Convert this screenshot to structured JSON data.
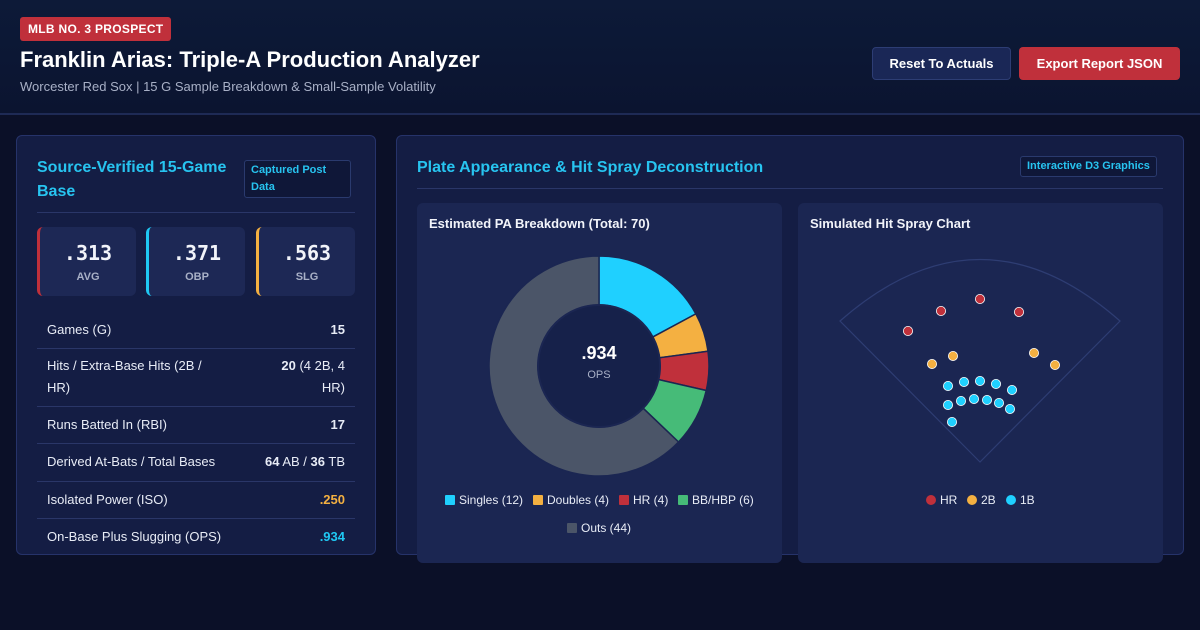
{
  "header": {
    "badge": "MLB NO. 3 PROSPECT",
    "title": "Franklin Arias: Triple-A Production Analyzer",
    "subtitle": "Worcester Red Sox | 15 G Sample Breakdown & Small-Sample Volatility",
    "reset_label": "Reset To Actuals",
    "export_label": "Export Report JSON"
  },
  "left_panel": {
    "title": "Source-Verified 15-Game Base",
    "tag": "Captured Post Data",
    "stats": [
      {
        "value": ".313",
        "label": "AVG",
        "color": "#c0303b"
      },
      {
        "value": ".371",
        "label": "OBP",
        "color": "#1fc8f3"
      },
      {
        "value": ".563",
        "label": "SLG",
        "color": "#f4b041"
      }
    ],
    "rows": [
      {
        "label": "Games (G)",
        "value": "15"
      },
      {
        "label": "Hits / Extra-Base Hits (2B / HR)",
        "value_main": "20",
        "value_rest": " (4 2B, 4 HR)"
      },
      {
        "label": "Runs Batted In (RBI)",
        "value": "17"
      },
      {
        "label": "Derived At-Bats / Total Bases",
        "v1": "64",
        "v1_unit": " AB / ",
        "v2": "36",
        "v2_unit": " TB"
      },
      {
        "label": "Isolated Power (ISO)",
        "value": ".250",
        "color": "#f4b041"
      },
      {
        "label": "On-Base Plus Slugging (OPS)",
        "value": ".934",
        "color": "#1fc8f3"
      }
    ]
  },
  "right_panel": {
    "title": "Plate Appearance & Hit Spray Deconstruction",
    "tag": "Interactive D3 Graphics",
    "donut_title": "Estimated PA Breakdown (Total: 70)",
    "spray_title": "Simulated Hit Spray Chart",
    "donut_center_value": ".934",
    "donut_center_label": "OPS"
  },
  "chart_data": [
    {
      "type": "pie",
      "title": "Estimated PA Breakdown (Total: 70)",
      "categories": [
        "Singles (12)",
        "Doubles (4)",
        "HR (4)",
        "BB/HBP (6)",
        "Outs (44)"
      ],
      "values": [
        12,
        4,
        4,
        6,
        44
      ],
      "colors": [
        "#1fd0ff",
        "#f4b041",
        "#c0303b",
        "#46bb78",
        "#4b5568"
      ],
      "legend": "bottom"
    },
    {
      "type": "scatter",
      "title": "Simulated Hit Spray Chart",
      "series": [
        {
          "name": "HR",
          "color": "#c0303b",
          "count": 4
        },
        {
          "name": "2B",
          "color": "#f4b041",
          "count": 4
        },
        {
          "name": "1B",
          "color": "#1fd0ff",
          "count": 12
        }
      ],
      "legend": "bottom"
    }
  ]
}
